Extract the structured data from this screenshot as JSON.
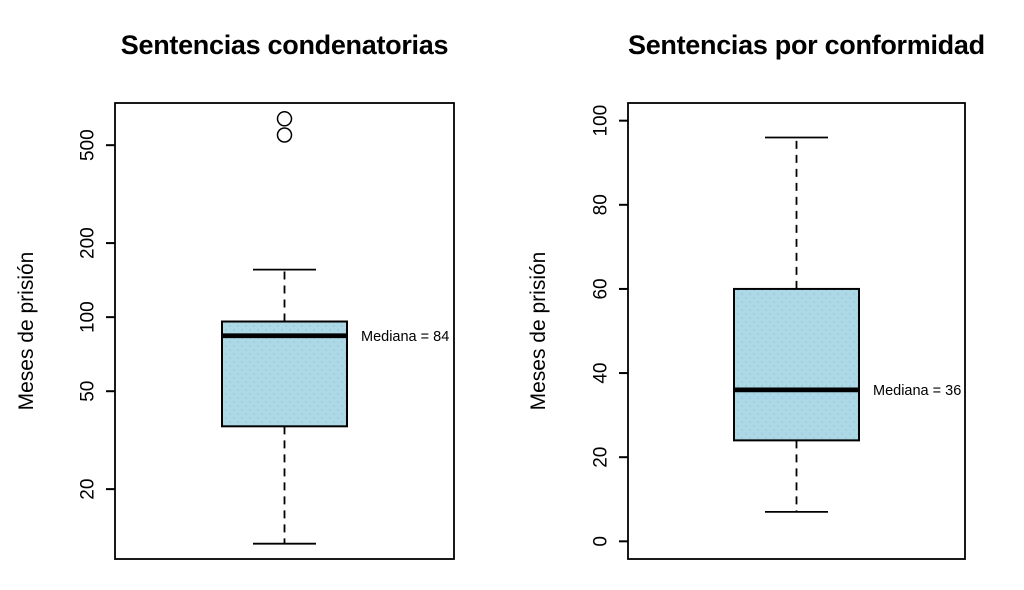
{
  "figure": {
    "background": "#ffffff",
    "foreground": "#000000"
  },
  "chart_data": [
    {
      "type": "boxplot",
      "title": "Sentencias condenatorias",
      "ylabel": "Meses de prisión",
      "yscale": "log",
      "ylim": [
        10.4,
        742
      ],
      "yticks": [
        20,
        50,
        100,
        200,
        500
      ],
      "stats": {
        "whisker_low": 12,
        "q1": 36,
        "median": 84,
        "q3": 96,
        "whisker_high": 156
      },
      "outliers": [
        550,
        640
      ],
      "median_label": "Mediana = 84",
      "box_fill": "#ADD8E6",
      "box_dot_color": "#96C8DC",
      "stroke": "#000000"
    },
    {
      "type": "boxplot",
      "title": "Sentencias por conformidad",
      "ylabel": "Meses de prisión",
      "yscale": "linear",
      "ylim": [
        -4.2,
        104.2
      ],
      "yticks": [
        0,
        20,
        40,
        60,
        80,
        100
      ],
      "stats": {
        "whisker_low": 7,
        "q1": 24,
        "median": 36,
        "q3": 60,
        "whisker_high": 96
      },
      "outliers": [],
      "median_label": "Mediana = 36",
      "box_fill": "#ADD8E6",
      "box_dot_color": "#96C8DC",
      "stroke": "#000000"
    }
  ]
}
